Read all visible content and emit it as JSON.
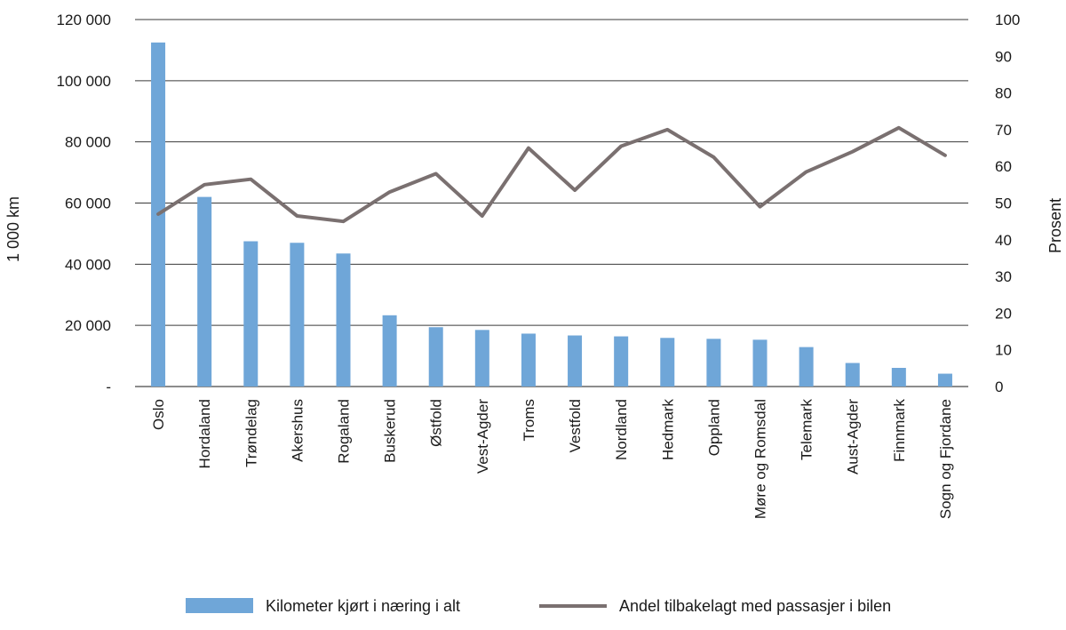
{
  "chart_data": {
    "type": "bar",
    "categories": [
      "Oslo",
      "Hordaland",
      "Trøndelag",
      "Akershus",
      "Rogaland",
      "Buskerud",
      "Østfold",
      "Vest-Agder",
      "Troms",
      "Vestfold",
      "Nordland",
      "Hedmark",
      "Oppland",
      "Møre og Romsdal",
      "Telemark",
      "Aust-Agder",
      "Finnmark",
      "Sogn og Fjordane"
    ],
    "series": [
      {
        "name": "Kilometer kjørt i næring i alt",
        "type": "bar",
        "axis": "left",
        "color": "#6fa6d8",
        "values": [
          112500,
          62000,
          47500,
          47000,
          43500,
          23300,
          19400,
          18500,
          17300,
          16700,
          16400,
          15900,
          15600,
          15300,
          12900,
          7700,
          6100,
          4200
        ]
      },
      {
        "name": "Andel tilbakelagt med passasjer i bilen",
        "type": "line",
        "axis": "right",
        "color": "#7a7070",
        "values": [
          47,
          55,
          56.5,
          46.5,
          45,
          53,
          58,
          46.5,
          65,
          53.5,
          65.5,
          70,
          62.5,
          49,
          58.5,
          64,
          70.5,
          63
        ]
      }
    ],
    "y_left": {
      "label": "1 000 km",
      "min": 0,
      "max": 120000,
      "ticks": [
        0,
        20000,
        40000,
        60000,
        80000,
        100000,
        120000
      ],
      "tick_labels": [
        "-",
        "20 000",
        "40 000",
        "60 000",
        "80 000",
        "100 000",
        "120 000"
      ]
    },
    "y_right": {
      "label": "Prosent",
      "min": 0,
      "max": 100,
      "ticks": [
        0,
        10,
        20,
        30,
        40,
        50,
        60,
        70,
        80,
        90,
        100
      ],
      "tick_labels": [
        "0",
        "10",
        "20",
        "30",
        "40",
        "50",
        "60",
        "70",
        "80",
        "90",
        "100"
      ]
    },
    "grid": true,
    "legend_position": "bottom"
  }
}
